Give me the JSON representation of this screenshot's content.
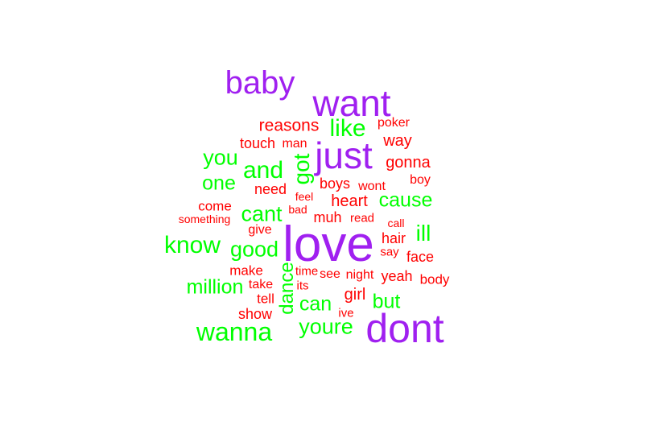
{
  "colors": {
    "purple": "#a020f0",
    "green": "#00ff00",
    "red": "#ff0000"
  },
  "words": [
    {
      "text": "baby",
      "color": "purple"
    },
    {
      "text": "want",
      "color": "purple"
    },
    {
      "text": "just",
      "color": "purple"
    },
    {
      "text": "love",
      "color": "purple"
    },
    {
      "text": "dont",
      "color": "purple"
    },
    {
      "text": "like",
      "color": "green"
    },
    {
      "text": "you",
      "color": "green"
    },
    {
      "text": "and",
      "color": "green"
    },
    {
      "text": "got",
      "color": "green"
    },
    {
      "text": "one",
      "color": "green"
    },
    {
      "text": "cause",
      "color": "green"
    },
    {
      "text": "cant",
      "color": "green"
    },
    {
      "text": "ill",
      "color": "green"
    },
    {
      "text": "know",
      "color": "green"
    },
    {
      "text": "good",
      "color": "green"
    },
    {
      "text": "million",
      "color": "green"
    },
    {
      "text": "dance",
      "color": "green"
    },
    {
      "text": "can",
      "color": "green"
    },
    {
      "text": "but",
      "color": "green"
    },
    {
      "text": "wanna",
      "color": "green"
    },
    {
      "text": "youre",
      "color": "green"
    },
    {
      "text": "reasons",
      "color": "red"
    },
    {
      "text": "poker",
      "color": "red"
    },
    {
      "text": "touch",
      "color": "red"
    },
    {
      "text": "man",
      "color": "red"
    },
    {
      "text": "way",
      "color": "red"
    },
    {
      "text": "gonna",
      "color": "red"
    },
    {
      "text": "boy",
      "color": "red"
    },
    {
      "text": "need",
      "color": "red"
    },
    {
      "text": "boys",
      "color": "red"
    },
    {
      "text": "wont",
      "color": "red"
    },
    {
      "text": "feel",
      "color": "red"
    },
    {
      "text": "heart",
      "color": "red"
    },
    {
      "text": "come",
      "color": "red"
    },
    {
      "text": "bad",
      "color": "red"
    },
    {
      "text": "something",
      "color": "red"
    },
    {
      "text": "muh",
      "color": "red"
    },
    {
      "text": "read",
      "color": "red"
    },
    {
      "text": "call",
      "color": "red"
    },
    {
      "text": "give",
      "color": "red"
    },
    {
      "text": "hair",
      "color": "red"
    },
    {
      "text": "say",
      "color": "red"
    },
    {
      "text": "face",
      "color": "red"
    },
    {
      "text": "make",
      "color": "red"
    },
    {
      "text": "time",
      "color": "red"
    },
    {
      "text": "see",
      "color": "red"
    },
    {
      "text": "night",
      "color": "red"
    },
    {
      "text": "yeah",
      "color": "red"
    },
    {
      "text": "body",
      "color": "red"
    },
    {
      "text": "take",
      "color": "red"
    },
    {
      "text": "its",
      "color": "red"
    },
    {
      "text": "girl",
      "color": "red"
    },
    {
      "text": "tell",
      "color": "red"
    },
    {
      "text": "show",
      "color": "red"
    },
    {
      "text": "ive",
      "color": "red"
    }
  ]
}
